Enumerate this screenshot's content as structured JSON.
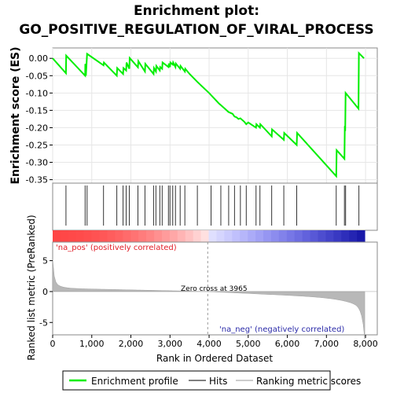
{
  "title_line1": "Enrichment plot:",
  "title_line2": "GO_POSITIVE_REGULATION_OF_VIRAL_PROCESS",
  "chart_data": {
    "type": "line",
    "es_panel": {
      "ylabel": "Enrichment score (ES)",
      "ylim": [
        -0.36,
        0.03
      ],
      "yticks": [
        "0.00",
        "-0.05",
        "-0.10",
        "-0.15",
        "-0.20",
        "-0.25",
        "-0.30",
        "-0.35"
      ],
      "ytick_values": [
        0.0,
        -0.05,
        -0.1,
        -0.15,
        -0.2,
        -0.25,
        -0.3,
        -0.35
      ],
      "series_name": "Enrichment profile",
      "color": "#00ee00",
      "points": [
        [
          0,
          0.0
        ],
        [
          340,
          -0.043
        ],
        [
          345,
          0.008
        ],
        [
          830,
          -0.05
        ],
        [
          835,
          -0.018
        ],
        [
          840,
          -0.016
        ],
        [
          850,
          -0.05
        ],
        [
          880,
          0.013
        ],
        [
          1300,
          -0.02
        ],
        [
          1310,
          -0.012
        ],
        [
          1640,
          -0.05
        ],
        [
          1650,
          -0.028
        ],
        [
          1800,
          -0.045
        ],
        [
          1810,
          -0.028
        ],
        [
          1880,
          -0.035
        ],
        [
          1890,
          -0.012
        ],
        [
          1960,
          -0.03
        ],
        [
          1970,
          0.001
        ],
        [
          2180,
          -0.026
        ],
        [
          2190,
          -0.008
        ],
        [
          2360,
          -0.038
        ],
        [
          2370,
          -0.016
        ],
        [
          2580,
          -0.045
        ],
        [
          2590,
          -0.028
        ],
        [
          2640,
          -0.038
        ],
        [
          2650,
          -0.022
        ],
        [
          2740,
          -0.035
        ],
        [
          2750,
          -0.025
        ],
        [
          2800,
          -0.03
        ],
        [
          2810,
          -0.012
        ],
        [
          2960,
          -0.025
        ],
        [
          2970,
          -0.015
        ],
        [
          3000,
          -0.025
        ],
        [
          3010,
          -0.012
        ],
        [
          3070,
          -0.018
        ],
        [
          3080,
          -0.012
        ],
        [
          3140,
          -0.025
        ],
        [
          3150,
          -0.015
        ],
        [
          3260,
          -0.03
        ],
        [
          3270,
          -0.022
        ],
        [
          3380,
          -0.038
        ],
        [
          3390,
          -0.03
        ],
        [
          3500,
          -0.045
        ],
        [
          3700,
          -0.068
        ],
        [
          4000,
          -0.1
        ],
        [
          4250,
          -0.13
        ],
        [
          4300,
          -0.135
        ],
        [
          4500,
          -0.155
        ],
        [
          4600,
          -0.16
        ],
        [
          4650,
          -0.168
        ],
        [
          4700,
          -0.17
        ],
        [
          4750,
          -0.175
        ],
        [
          4800,
          -0.173
        ],
        [
          4900,
          -0.183
        ],
        [
          4950,
          -0.19
        ],
        [
          5000,
          -0.185
        ],
        [
          5200,
          -0.2
        ],
        [
          5210,
          -0.19
        ],
        [
          5300,
          -0.2
        ],
        [
          5310,
          -0.19
        ],
        [
          5600,
          -0.225
        ],
        [
          5610,
          -0.205
        ],
        [
          5910,
          -0.235
        ],
        [
          5920,
          -0.215
        ],
        [
          6240,
          -0.25
        ],
        [
          6250,
          -0.215
        ],
        [
          7250,
          -0.34
        ],
        [
          7260,
          -0.265
        ],
        [
          7460,
          -0.29
        ],
        [
          7470,
          -0.195
        ],
        [
          7480,
          -0.21
        ],
        [
          7490,
          -0.1
        ],
        [
          7820,
          -0.145
        ],
        [
          7830,
          0.015
        ],
        [
          7960,
          0.0
        ]
      ]
    },
    "hits_panel": {
      "series_name": "Hits",
      "positions": [
        340,
        830,
        880,
        1300,
        1640,
        1800,
        1880,
        1960,
        2180,
        2360,
        2580,
        2640,
        2740,
        2800,
        2960,
        3000,
        3070,
        3140,
        3260,
        3380,
        3700,
        4050,
        4300,
        4500,
        4650,
        4800,
        4950,
        5200,
        5300,
        5600,
        5910,
        6240,
        7250,
        7460,
        7490,
        7830
      ]
    },
    "metric_panel": {
      "series_name": "Ranking metric scores",
      "ylabel": "Ranked list metric (PreRanked)",
      "ylim": [
        -7,
        8
      ],
      "yticks": [
        "5",
        "0",
        "-5"
      ],
      "ytick_values": [
        5,
        0,
        -5
      ],
      "zero_cross_label": "Zero cross at 3965",
      "zero_cross": 3965,
      "pos_label": "'na_pos' (positively correlated)",
      "neg_label": "'na_neg' (negatively correlated)"
    },
    "xlabel": "Rank in Ordered Dataset",
    "xlim": [
      0,
      8300
    ],
    "xticks": [
      "0",
      "1,000",
      "2,000",
      "3,000",
      "4,000",
      "5,000",
      "6,000",
      "7,000",
      "8,000"
    ],
    "xtick_values": [
      0,
      1000,
      2000,
      3000,
      4000,
      5000,
      6000,
      7000,
      8000
    ],
    "n_genes": 7980,
    "legend": {
      "placement": "bottom",
      "items": [
        "Enrichment profile",
        "Hits",
        "Ranking metric scores"
      ]
    }
  }
}
